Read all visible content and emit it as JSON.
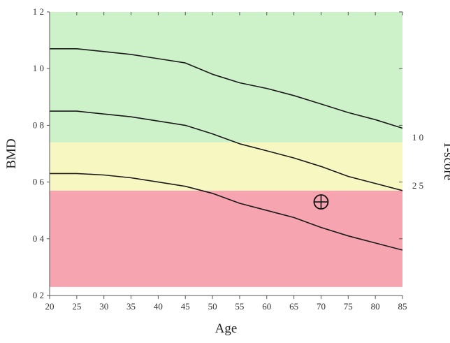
{
  "chart_data": {
    "type": "line",
    "xlabel": "Age",
    "ylabel": "BMD",
    "right_label": "T-score",
    "xlim": [
      20,
      85
    ],
    "ylim": [
      0.2,
      1.2
    ],
    "x_ticks": [
      20,
      25,
      30,
      35,
      40,
      45,
      50,
      55,
      60,
      65,
      70,
      75,
      80,
      85
    ],
    "y_ticks": [
      0.2,
      0.4,
      0.6,
      0.8,
      1.0,
      1.2
    ],
    "y_tick_labels": [
      "0 2",
      "0 4",
      "0 6",
      "0 8",
      "1 0",
      "1 2"
    ],
    "bands": [
      {
        "from": 0.23,
        "to": 0.57,
        "color": "#f5a4b0"
      },
      {
        "from": 0.57,
        "to": 0.74,
        "color": "#f7f7c2"
      },
      {
        "from": 0.74,
        "to": 1.2,
        "color": "#cdf1c9"
      }
    ],
    "t_score_labels": [
      {
        "value": 0.74,
        "label": "1 0"
      },
      {
        "value": 0.57,
        "label": "2 5"
      }
    ],
    "x": [
      20,
      25,
      30,
      35,
      40,
      45,
      50,
      55,
      60,
      65,
      70,
      75,
      80,
      85
    ],
    "series": [
      {
        "values": [
          1.07,
          1.07,
          1.06,
          1.05,
          1.035,
          1.02,
          0.98,
          0.95,
          0.93,
          0.905,
          0.875,
          0.845,
          0.82,
          0.79
        ]
      },
      {
        "values": [
          0.85,
          0.85,
          0.84,
          0.83,
          0.815,
          0.8,
          0.77,
          0.735,
          0.71,
          0.685,
          0.655,
          0.62,
          0.595,
          0.57
        ]
      },
      {
        "values": [
          0.63,
          0.63,
          0.625,
          0.615,
          0.6,
          0.585,
          0.56,
          0.525,
          0.5,
          0.475,
          0.44,
          0.41,
          0.385,
          0.36
        ]
      }
    ],
    "marker": {
      "x": 70,
      "y": 0.53
    },
    "colors": {
      "line": "#1a1a1a",
      "axis": "#555555",
      "marker": "#111111"
    }
  }
}
